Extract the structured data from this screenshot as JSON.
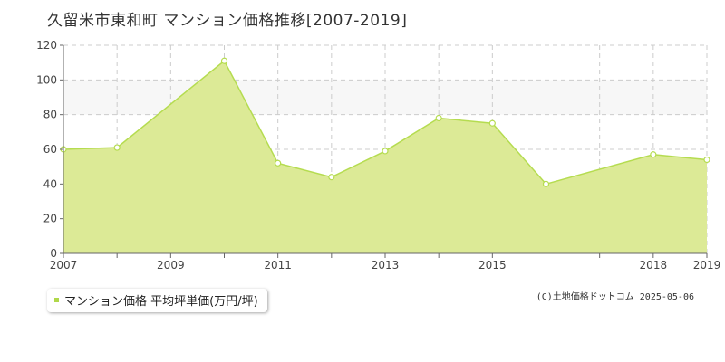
{
  "header": {
    "title": "久留米市東和町 マンション価格推移[2007-2019]"
  },
  "legend": {
    "label": "マンション価格 平均坪単価(万円/坪)"
  },
  "footer": {
    "copyright": "(C)土地価格ドットコム 2025-05-06"
  },
  "colors": {
    "fill": "#dcea96",
    "line": "#b5dc50",
    "band": "#f7f7f7",
    "grid": "#cccccc",
    "axis": "#666666"
  },
  "chart_data": {
    "type": "area",
    "x": [
      2007,
      2008,
      2010,
      2011,
      2012,
      2013,
      2014,
      2015,
      2016,
      2018,
      2019
    ],
    "values": [
      60,
      61,
      111,
      52,
      44,
      59,
      78,
      75,
      40,
      57,
      54
    ],
    "x_tick_labels": [
      "2007",
      "2009",
      "2011",
      "2013",
      "2015",
      "2018",
      "2019"
    ],
    "x_tick_values": [
      2007,
      2009,
      2011,
      2013,
      2015,
      2018,
      2019
    ],
    "x_minor_ticks": [
      2008,
      2010,
      2012,
      2014,
      2016,
      2017
    ],
    "y_ticks": [
      0,
      20,
      40,
      60,
      80,
      100,
      120
    ],
    "xlim": [
      2007,
      2019
    ],
    "ylim": [
      0,
      120
    ],
    "band": [
      80,
      100
    ],
    "grid": true,
    "xlabel": "",
    "ylabel": ""
  }
}
